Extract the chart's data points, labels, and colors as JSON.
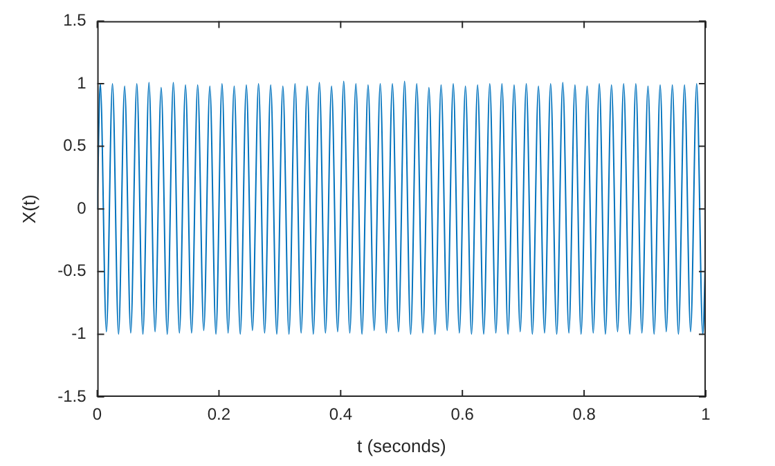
{
  "chart_data": {
    "type": "line",
    "xlabel": "t (seconds)",
    "ylabel": "X(t)",
    "x": [
      0,
      0.005,
      0.015,
      0.025,
      0.035,
      0.045,
      0.055,
      0.065,
      0.075,
      0.085,
      0.095,
      0.105,
      0.115,
      0.125,
      0.135,
      0.145,
      0.155,
      0.165,
      0.175,
      0.185,
      0.195,
      0.205,
      0.215,
      0.225,
      0.235,
      0.245,
      0.255,
      0.265,
      0.275,
      0.285,
      0.295,
      0.305,
      0.315,
      0.325,
      0.335,
      0.345,
      0.355,
      0.365,
      0.375,
      0.385,
      0.395,
      0.405,
      0.415,
      0.425,
      0.435,
      0.445,
      0.455,
      0.465,
      0.475,
      0.485,
      0.495,
      0.505,
      0.515,
      0.525,
      0.535,
      0.545,
      0.555,
      0.565,
      0.575,
      0.585,
      0.595,
      0.605,
      0.615,
      0.625,
      0.635,
      0.645,
      0.655,
      0.665,
      0.675,
      0.685,
      0.695,
      0.705,
      0.715,
      0.725,
      0.735,
      0.745,
      0.755,
      0.765,
      0.775,
      0.785,
      0.795,
      0.805,
      0.815,
      0.825,
      0.835,
      0.845,
      0.855,
      0.865,
      0.875,
      0.885,
      0.895,
      0.905,
      0.915,
      0.925,
      0.935,
      0.945,
      0.955,
      0.965,
      0.975,
      0.985,
      0.995,
      1
    ],
    "series": [
      {
        "color": "#0072bd",
        "values": [
          0,
          1,
          -0.98,
          1,
          -1,
          0.98,
          -0.99,
          1,
          -1,
          1.01,
          -0.98,
          0.97,
          -1,
          1.01,
          -0.99,
          0.99,
          -0.99,
          0.99,
          -0.97,
          0.98,
          -1,
          1,
          -0.99,
          0.98,
          -1,
          0.99,
          -0.97,
          1,
          -0.99,
          0.99,
          -1,
          0.98,
          -1,
          1,
          -0.99,
          0.98,
          -1,
          1.01,
          -0.99,
          0.98,
          -0.98,
          1.02,
          -0.99,
          1,
          -1,
          0.99,
          -0.97,
          1,
          -0.99,
          1,
          -0.98,
          1.02,
          -1,
          1,
          -0.99,
          0.97,
          -1,
          0.99,
          -0.97,
          1,
          -0.99,
          0.98,
          -1,
          0.99,
          -1,
          1,
          -0.99,
          1,
          -1,
          0.99,
          -0.98,
          1,
          -1,
          0.98,
          -0.99,
          1,
          -1,
          1.01,
          -0.99,
          0.99,
          -1,
          0.98,
          -0.99,
          1,
          -1,
          0.99,
          -0.98,
          1,
          -1,
          1,
          -0.99,
          0.98,
          -1,
          0.99,
          -0.98,
          0.99,
          -1,
          0.99,
          -0.98,
          1,
          -1,
          -0.27
        ]
      }
    ],
    "xlim": [
      0,
      1
    ],
    "xticks": [
      0,
      0.2,
      0.4,
      0.6,
      0.8,
      1
    ],
    "ylim": [
      -1.5,
      1.5
    ],
    "yticks": [
      -1.5,
      -1,
      -0.5,
      0,
      0.5,
      1,
      1.5
    ],
    "grid": false,
    "legend": false,
    "marker": "none",
    "line_style": "solid"
  }
}
